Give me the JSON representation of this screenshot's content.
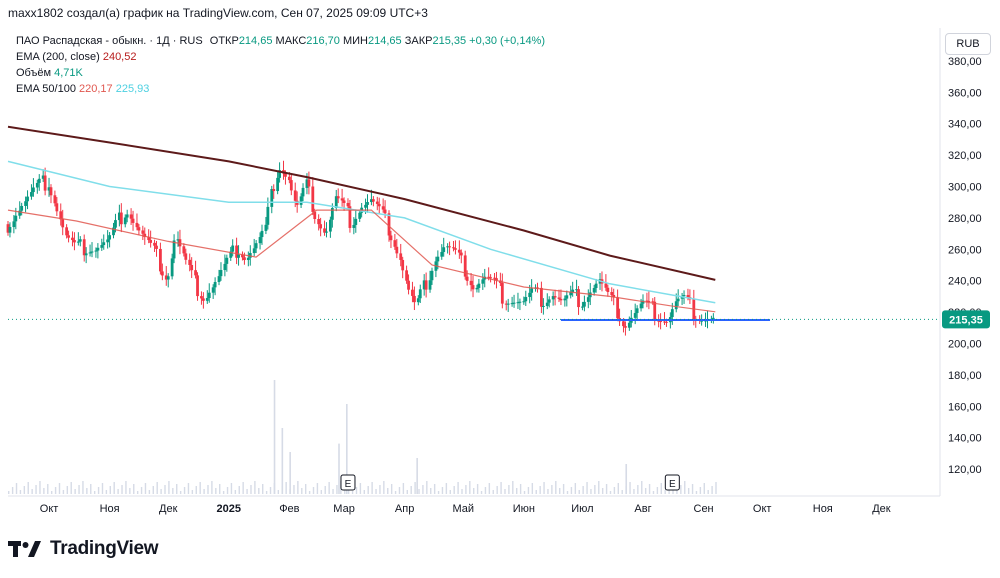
{
  "header": {
    "text": "maxx1802 создал(а) график на TradingView.com, Сен 07, 2025 09:09 UTC+3"
  },
  "legend": {
    "symbol": "ПАО Распадская - обыкн. · 1Д · RUS",
    "open_label": "ОТКР",
    "open_value": "214,65",
    "high_label": "МАКС",
    "high_value": "216,70",
    "low_label": "МИН",
    "low_value": "214,65",
    "close_label": "ЗАКР",
    "close_value": "215,35",
    "change": "+0,30 (+0,14%)",
    "ema200_label": "EMA (200, close)",
    "ema200_value": "240,52",
    "volume_label": "Объём",
    "volume_value": "4,71K",
    "ema50_100_label": "EMA 50/100",
    "ema50_value": "220,17",
    "ema100_value": "225,93"
  },
  "currency_button": {
    "label": "RUB"
  },
  "branding": {
    "logo_text": "TradingView"
  },
  "colors": {
    "up": "#089981",
    "down": "#f23645",
    "ema200": "#5d1a1a",
    "ema50": "#e0574f",
    "ema100": "#80deea",
    "support": "#2962ff",
    "last_price": "#089981"
  },
  "chart_data": {
    "type": "candlestick",
    "y_axis": {
      "min": 110,
      "max": 390,
      "ticks": [
        120,
        140,
        160,
        180,
        200,
        220,
        240,
        260,
        280,
        300,
        320,
        340,
        360,
        380
      ],
      "tick_labels": [
        "120,00",
        "140,00",
        "160,00",
        "180,00",
        "200,00",
        "220,00",
        "240,00",
        "260,00",
        "280,00",
        "300,00",
        "320,00",
        "340,00",
        "360,00",
        "380,00"
      ]
    },
    "x_axis": {
      "start": "2024-09-10",
      "end": "2025-12-31",
      "month_labels": [
        {
          "date": "2024-10-01",
          "label": "Окт"
        },
        {
          "date": "2024-11-01",
          "label": "Ноя"
        },
        {
          "date": "2024-12-01",
          "label": "Дек"
        },
        {
          "date": "2025-01-01",
          "label": "2025"
        },
        {
          "date": "2025-02-01",
          "label": "Фев"
        },
        {
          "date": "2025-03-01",
          "label": "Мар"
        },
        {
          "date": "2025-04-01",
          "label": "Апр"
        },
        {
          "date": "2025-05-01",
          "label": "Май"
        },
        {
          "date": "2025-06-01",
          "label": "Июн"
        },
        {
          "date": "2025-07-01",
          "label": "Июл"
        },
        {
          "date": "2025-08-01",
          "label": "Авг"
        },
        {
          "date": "2025-09-01",
          "label": "Сен"
        },
        {
          "date": "2025-10-01",
          "label": "Окт"
        },
        {
          "date": "2025-11-01",
          "label": "Ноя"
        },
        {
          "date": "2025-12-01",
          "label": "Дек"
        }
      ]
    },
    "close_series": [
      [
        "2024-09-10",
        276
      ],
      [
        "2024-09-15",
        285
      ],
      [
        "2024-09-20",
        292
      ],
      [
        "2024-09-26",
        300
      ],
      [
        "2024-10-01",
        304
      ],
      [
        "2024-10-05",
        288
      ],
      [
        "2024-10-10",
        268
      ],
      [
        "2024-10-15",
        260
      ],
      [
        "2024-10-20",
        262
      ],
      [
        "2024-10-25",
        261
      ],
      [
        "2024-11-01",
        265
      ],
      [
        "2024-11-06",
        278
      ],
      [
        "2024-11-10",
        287
      ],
      [
        "2024-11-15",
        275
      ],
      [
        "2024-11-20",
        265
      ],
      [
        "2024-11-25",
        256
      ],
      [
        "2024-12-01",
        242
      ],
      [
        "2024-12-05",
        270
      ],
      [
        "2024-12-10",
        252
      ],
      [
        "2024-12-15",
        238
      ],
      [
        "2024-12-20",
        230
      ],
      [
        "2024-12-26",
        240
      ],
      [
        "2025-01-06",
        262
      ],
      [
        "2025-01-10",
        255
      ],
      [
        "2025-01-15",
        262
      ],
      [
        "2025-01-20",
        272
      ],
      [
        "2025-01-24",
        300
      ],
      [
        "2025-01-27",
        315
      ],
      [
        "2025-02-01",
        305
      ],
      [
        "2025-02-05",
        285
      ],
      [
        "2025-02-10",
        300
      ],
      [
        "2025-02-15",
        282
      ],
      [
        "2025-02-20",
        270
      ],
      [
        "2025-02-25",
        292
      ],
      [
        "2025-03-01",
        286
      ],
      [
        "2025-03-05",
        278
      ],
      [
        "2025-03-10",
        288
      ],
      [
        "2025-03-15",
        291
      ],
      [
        "2025-03-20",
        283
      ],
      [
        "2025-03-25",
        272
      ],
      [
        "2025-03-30",
        255
      ],
      [
        "2025-04-03",
        235
      ],
      [
        "2025-04-07",
        222
      ],
      [
        "2025-04-12",
        238
      ],
      [
        "2025-04-17",
        255
      ],
      [
        "2025-04-22",
        262
      ],
      [
        "2025-04-27",
        257
      ],
      [
        "2025-05-02",
        248
      ],
      [
        "2025-05-07",
        236
      ],
      [
        "2025-05-12",
        242
      ],
      [
        "2025-05-17",
        238
      ],
      [
        "2025-05-22",
        230
      ],
      [
        "2025-05-27",
        228
      ],
      [
        "2025-06-01",
        226
      ],
      [
        "2025-06-06",
        232
      ],
      [
        "2025-06-11",
        228
      ],
      [
        "2025-06-16",
        232
      ],
      [
        "2025-06-21",
        226
      ],
      [
        "2025-06-26",
        230
      ],
      [
        "2025-07-01",
        228
      ],
      [
        "2025-07-06",
        235
      ],
      [
        "2025-07-10",
        240
      ],
      [
        "2025-07-15",
        228
      ],
      [
        "2025-07-20",
        220
      ],
      [
        "2025-07-23",
        212
      ],
      [
        "2025-07-27",
        218
      ],
      [
        "2025-08-01",
        225
      ],
      [
        "2025-08-05",
        222
      ],
      [
        "2025-08-10",
        218
      ],
      [
        "2025-08-14",
        215
      ],
      [
        "2025-08-18",
        226
      ],
      [
        "2025-08-22",
        228
      ],
      [
        "2025-08-26",
        222
      ],
      [
        "2025-08-30",
        218
      ],
      [
        "2025-09-03",
        216
      ],
      [
        "2025-09-07",
        215.35
      ]
    ],
    "ema200": [
      [
        "2024-09-10",
        338
      ],
      [
        "2024-11-01",
        328
      ],
      [
        "2025-01-01",
        316
      ],
      [
        "2025-02-10",
        306
      ],
      [
        "2025-04-01",
        292
      ],
      [
        "2025-06-01",
        272
      ],
      [
        "2025-07-15",
        256
      ],
      [
        "2025-09-07",
        240.52
      ]
    ],
    "ema100": [
      [
        "2024-09-10",
        316
      ],
      [
        "2024-11-01",
        300
      ],
      [
        "2025-01-01",
        290
      ],
      [
        "2025-02-10",
        290
      ],
      [
        "2025-04-01",
        280
      ],
      [
        "2025-05-15",
        260
      ],
      [
        "2025-07-15",
        238
      ],
      [
        "2025-09-07",
        225.93
      ]
    ],
    "ema50": [
      [
        "2024-09-10",
        285
      ],
      [
        "2024-10-15",
        278
      ],
      [
        "2024-12-01",
        265
      ],
      [
        "2025-01-15",
        255
      ],
      [
        "2025-02-15",
        285
      ],
      [
        "2025-03-15",
        285
      ],
      [
        "2025-04-15",
        250
      ],
      [
        "2025-06-01",
        236
      ],
      [
        "2025-07-15",
        230
      ],
      [
        "2025-08-15",
        224
      ],
      [
        "2025-09-07",
        220.17
      ]
    ],
    "support_line": {
      "value": 215,
      "from": "2025-06-20",
      "to": "2025-10-05"
    },
    "last_price": {
      "value": 215.35,
      "label": "215,35"
    },
    "volume_spikes": [
      [
        "2025-01-24",
        0.95
      ],
      [
        "2025-01-28",
        0.55
      ],
      [
        "2025-02-01",
        0.35
      ],
      [
        "2025-02-26",
        0.42
      ],
      [
        "2025-03-02",
        0.75
      ],
      [
        "2025-04-07",
        0.3
      ],
      [
        "2025-07-23",
        0.25
      ]
    ],
    "events": [
      {
        "date": "2025-03-03",
        "label": "E"
      },
      {
        "date": "2025-08-16",
        "label": "E"
      }
    ]
  }
}
